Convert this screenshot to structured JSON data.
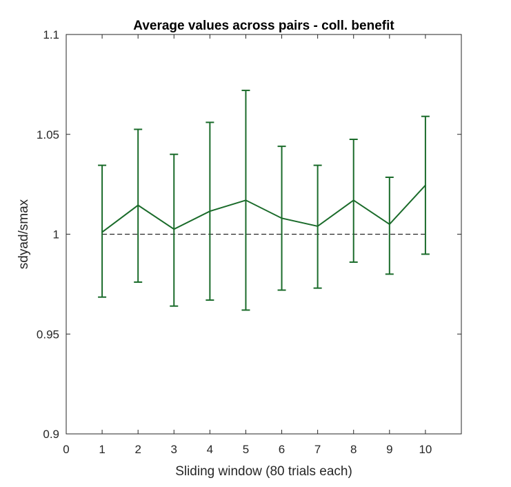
{
  "chart_data": {
    "type": "line",
    "title": "Average values across pairs - coll. benefit",
    "xlabel": "Sliding window (80 trials each)",
    "ylabel": "sdyad/smax",
    "xlim": [
      0,
      11
    ],
    "ylim": [
      0.9,
      1.1
    ],
    "xticks": [
      0,
      1,
      2,
      3,
      4,
      5,
      6,
      7,
      8,
      9,
      10
    ],
    "yticks": [
      0.9,
      0.95,
      1.0,
      1.05,
      1.1
    ],
    "ytick_labels": [
      "0.9",
      "0.95",
      "1",
      "1.05",
      "1.1"
    ],
    "grid": false,
    "series": [
      {
        "color": "#1a6b2a",
        "x": [
          1,
          2,
          3,
          4,
          5,
          6,
          7,
          8,
          9,
          10
        ],
        "y": [
          1.001,
          1.0145,
          1.0025,
          1.0115,
          1.017,
          1.008,
          1.004,
          1.017,
          1.005,
          1.0245
        ],
        "y_lower": [
          0.9685,
          0.976,
          0.964,
          0.967,
          0.962,
          0.972,
          0.973,
          0.986,
          0.98,
          0.99
        ],
        "y_upper": [
          1.0345,
          1.0525,
          1.04,
          1.056,
          1.072,
          1.044,
          1.0345,
          1.0475,
          1.0285,
          1.059
        ]
      }
    ],
    "reference_line": {
      "y": 1.0,
      "x_range": [
        1,
        10
      ],
      "style": "dashed",
      "color": "#000000"
    }
  }
}
